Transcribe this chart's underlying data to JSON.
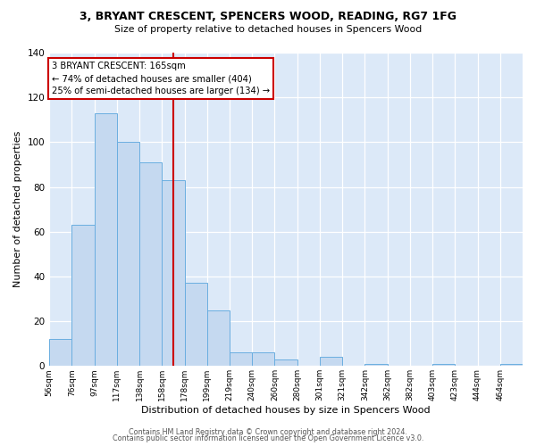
{
  "title": "3, BRYANT CRESCENT, SPENCERS WOOD, READING, RG7 1FG",
  "subtitle": "Size of property relative to detached houses in Spencers Wood",
  "xlabel": "Distribution of detached houses by size in Spencers Wood",
  "ylabel": "Number of detached properties",
  "bin_labels": [
    "56sqm",
    "76sqm",
    "97sqm",
    "117sqm",
    "138sqm",
    "158sqm",
    "178sqm",
    "199sqm",
    "219sqm",
    "240sqm",
    "260sqm",
    "280sqm",
    "301sqm",
    "321sqm",
    "342sqm",
    "362sqm",
    "382sqm",
    "403sqm",
    "423sqm",
    "444sqm",
    "464sqm"
  ],
  "bar_heights": [
    12,
    63,
    113,
    100,
    91,
    83,
    37,
    25,
    6,
    6,
    3,
    0,
    4,
    0,
    1,
    0,
    0,
    1,
    0,
    0,
    1
  ],
  "bar_color": "#c5d9f0",
  "bar_edge_color": "#6aaee0",
  "bg_color": "#dce9f8",
  "property_line_x": 5.5,
  "property_line_color": "#cc0000",
  "annotation_line1": "3 BRYANT CRESCENT: 165sqm",
  "annotation_line2": "← 74% of detached houses are smaller (404)",
  "annotation_line3": "25% of semi-detached houses are larger (134) →",
  "annotation_box_color": "#cc0000",
  "ylim": [
    0,
    140
  ],
  "yticks": [
    0,
    20,
    40,
    60,
    80,
    100,
    120,
    140
  ],
  "footer_line1": "Contains HM Land Registry data © Crown copyright and database right 2024.",
  "footer_line2": "Contains public sector information licensed under the Open Government Licence v3.0.",
  "num_bins": 21
}
